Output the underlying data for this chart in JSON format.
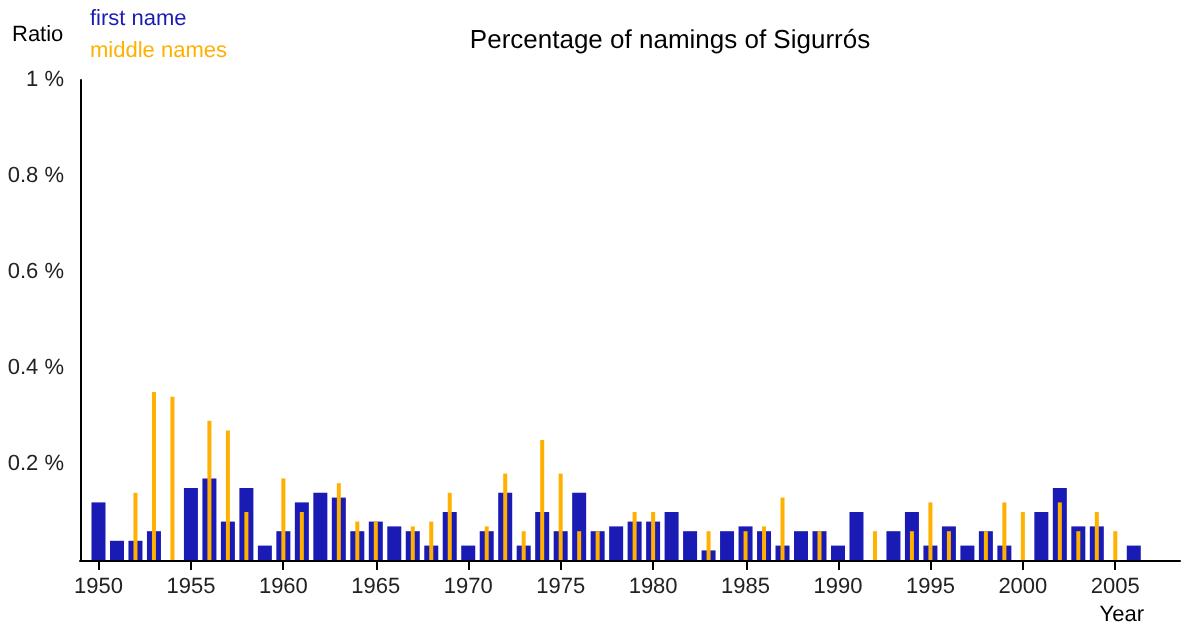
{
  "chart_data": {
    "type": "bar",
    "title": "Percentage of namings of Sigurrós",
    "xlabel": "Year",
    "ylabel": "Ratio",
    "x": [
      1950,
      1951,
      1952,
      1953,
      1954,
      1955,
      1956,
      1957,
      1958,
      1959,
      1960,
      1961,
      1962,
      1963,
      1964,
      1965,
      1966,
      1967,
      1968,
      1969,
      1970,
      1971,
      1972,
      1973,
      1974,
      1975,
      1976,
      1977,
      1978,
      1979,
      1980,
      1981,
      1982,
      1983,
      1984,
      1985,
      1986,
      1987,
      1988,
      1989,
      1990,
      1991,
      1992,
      1993,
      1994,
      1995,
      1996,
      1997,
      1998,
      1999,
      2000,
      2001,
      2002,
      2003,
      2004,
      2005,
      2006
    ],
    "series": [
      {
        "name": "first name",
        "color": "#1a1ab4",
        "values": [
          0.12,
          0.04,
          0.04,
          0.06,
          null,
          0.15,
          0.17,
          0.08,
          0.15,
          0.03,
          0.06,
          0.12,
          0.14,
          0.13,
          0.06,
          0.08,
          0.07,
          0.06,
          0.03,
          0.1,
          0.03,
          0.06,
          0.14,
          0.03,
          0.1,
          0.06,
          0.14,
          0.06,
          0.07,
          0.08,
          0.08,
          0.1,
          0.06,
          0.02,
          0.06,
          0.07,
          0.06,
          0.03,
          0.06,
          0.06,
          0.03,
          0.1,
          null,
          0.06,
          0.1,
          0.03,
          0.07,
          0.03,
          0.06,
          0.03,
          null,
          0.1,
          0.15,
          0.07,
          0.07,
          null,
          0.03
        ]
      },
      {
        "name": "middle names",
        "color": "#ffb000",
        "values": [
          null,
          null,
          0.14,
          0.35,
          0.34,
          null,
          0.29,
          0.27,
          0.1,
          null,
          0.17,
          0.1,
          null,
          0.16,
          0.08,
          0.08,
          null,
          0.07,
          0.08,
          0.14,
          null,
          0.07,
          0.18,
          0.06,
          0.25,
          0.18,
          0.06,
          0.06,
          null,
          0.1,
          0.1,
          null,
          null,
          0.06,
          null,
          0.06,
          0.07,
          0.13,
          null,
          0.06,
          null,
          null,
          0.06,
          null,
          0.06,
          0.12,
          0.06,
          null,
          0.06,
          0.12,
          0.1,
          null,
          0.12,
          0.06,
          0.1,
          0.06,
          null
        ]
      }
    ],
    "xlim": [
      1949,
      2008.5
    ],
    "xticks": [
      1950,
      1955,
      1960,
      1965,
      1970,
      1975,
      1980,
      1985,
      1990,
      1995,
      2000,
      2005
    ],
    "ylim": [
      0,
      1
    ],
    "yticks": [
      {
        "value": 0.2,
        "label": "0.2 %"
      },
      {
        "value": 0.4,
        "label": "0.4 %"
      },
      {
        "value": 0.6,
        "label": "0.6 %"
      },
      {
        "value": 0.8,
        "label": "0.8 %"
      },
      {
        "value": 1,
        "label": "1 %"
      }
    ],
    "legend": "top left",
    "grid": false
  }
}
